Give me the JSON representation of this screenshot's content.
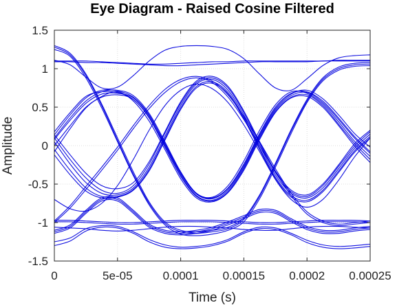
{
  "chart_data": {
    "type": "line",
    "title": "Eye Diagram - Raised Cosine Filtered",
    "xlabel": "Time (s)",
    "ylabel": "Amplitude",
    "xlim": [
      0,
      0.00025
    ],
    "ylim": [
      -1.5,
      1.5
    ],
    "xticks": [
      0,
      5e-05,
      0.0001,
      0.00015,
      0.0002,
      0.00025
    ],
    "xtick_labels": [
      "0",
      "5e-05",
      "0.0001",
      "0.00015",
      "0.0002",
      "0.00025"
    ],
    "yticks": [
      -1.5,
      -1,
      -0.5,
      0,
      0.5,
      1,
      1.5
    ],
    "ytick_labels": [
      "-1.5",
      "-1",
      "-0.5",
      "0",
      "0.5",
      "1",
      "1.5"
    ],
    "grid": true,
    "line_color": "#0000dd",
    "x": [
      0,
      1.25e-05,
      2.5e-05,
      3.75e-05,
      5e-05,
      6.25e-05,
      7.5e-05,
      8.75e-05,
      0.0001,
      0.0001125,
      0.000125,
      0.0001375,
      0.00015,
      0.0001625,
      0.000175,
      0.0001875,
      0.0002,
      0.0002125,
      0.000225,
      0.0002375,
      0.00025
    ],
    "series": [
      {
        "values": [
          1.3,
          1.2,
          0.93,
          0.54,
          0.1,
          -0.34,
          -0.73,
          -0.99,
          -1.1,
          -1.12,
          -1.1,
          -1.06,
          -0.94,
          -0.64,
          -0.23,
          0.21,
          0.6,
          0.88,
          1.02,
          1.07,
          1.08
        ]
      },
      {
        "values": [
          1.28,
          1.18,
          0.91,
          0.52,
          0.07,
          -0.37,
          -0.75,
          -1.01,
          -1.12,
          -1.14,
          -1.12,
          -1.08,
          -0.96,
          -0.66,
          -0.25,
          0.19,
          0.58,
          0.86,
          1.0,
          1.05,
          1.06
        ]
      },
      {
        "values": [
          1.25,
          1.16,
          0.88,
          0.49,
          0.05,
          -0.39,
          -0.77,
          -1.03,
          -1.15,
          -1.17,
          -1.15,
          -1.1,
          -0.99,
          -0.69,
          -0.28,
          0.16,
          0.56,
          0.84,
          0.98,
          1.03,
          1.04
        ]
      },
      {
        "values": [
          1.1,
          1.1,
          1.1,
          1.09,
          1.08,
          1.07,
          1.06,
          1.06,
          1.07,
          1.08,
          1.09,
          1.09,
          1.1,
          1.1,
          1.1,
          1.1,
          1.1,
          1.1,
          1.11,
          1.11,
          1.11
        ]
      },
      {
        "values": [
          1.09,
          1.09,
          1.08,
          1.08,
          1.07,
          1.06,
          1.05,
          1.04,
          1.04,
          1.05,
          1.06,
          1.07,
          1.08,
          1.09,
          1.09,
          1.09,
          1.09,
          1.1,
          1.1,
          1.1,
          1.1
        ]
      },
      {
        "values": [
          1.11,
          1.05,
          0.89,
          0.75,
          0.76,
          0.91,
          1.1,
          1.24,
          1.29,
          1.3,
          1.29,
          1.25,
          1.13,
          0.93,
          0.75,
          0.72,
          0.87,
          1.04,
          1.14,
          1.17,
          1.18
        ]
      },
      {
        "values": [
          0.1,
          0.36,
          0.58,
          0.7,
          0.72,
          0.65,
          0.42,
          0.05,
          -0.34,
          -0.62,
          -0.68,
          -0.55,
          -0.24,
          0.16,
          0.5,
          0.68,
          0.7,
          0.58,
          0.36,
          0.12,
          -0.08
        ]
      },
      {
        "values": [
          0.14,
          0.4,
          0.62,
          0.72,
          0.71,
          0.63,
          0.4,
          0.02,
          -0.36,
          -0.63,
          -0.69,
          -0.56,
          -0.26,
          0.14,
          0.48,
          0.67,
          0.72,
          0.61,
          0.4,
          0.16,
          -0.02
        ]
      },
      {
        "values": [
          0.18,
          0.43,
          0.64,
          0.7,
          0.69,
          0.6,
          0.37,
          0.0,
          -0.38,
          -0.65,
          -0.71,
          -0.58,
          -0.28,
          0.12,
          0.46,
          0.65,
          0.69,
          0.56,
          0.34,
          0.1,
          -0.1
        ]
      },
      {
        "values": [
          0.08,
          0.33,
          0.55,
          0.67,
          0.68,
          0.62,
          0.39,
          0.03,
          -0.35,
          -0.62,
          -0.67,
          -0.52,
          -0.2,
          0.2,
          0.53,
          0.7,
          0.68,
          0.54,
          0.31,
          0.06,
          -0.14
        ]
      },
      {
        "values": [
          0.0,
          0.26,
          0.5,
          0.63,
          0.66,
          0.6,
          0.36,
          -0.02,
          -0.4,
          -0.66,
          -0.72,
          -0.6,
          -0.3,
          0.1,
          0.44,
          0.63,
          0.66,
          0.52,
          0.28,
          0.03,
          -0.18
        ]
      },
      {
        "values": [
          -0.08,
          0.22,
          0.49,
          0.64,
          0.7,
          0.58,
          0.32,
          -0.05,
          -0.43,
          -0.68,
          -0.73,
          -0.61,
          -0.32,
          0.08,
          0.43,
          0.62,
          0.64,
          0.5,
          0.26,
          0.0,
          -0.22
        ]
      },
      {
        "values": [
          0.05,
          -0.24,
          -0.48,
          -0.62,
          -0.64,
          -0.55,
          -0.28,
          0.12,
          0.52,
          0.8,
          0.86,
          0.72,
          0.4,
          0.0,
          -0.38,
          -0.62,
          -0.68,
          -0.55,
          -0.3,
          -0.04,
          0.15
        ]
      },
      {
        "values": [
          0.1,
          -0.18,
          -0.42,
          -0.58,
          -0.62,
          -0.52,
          -0.24,
          0.16,
          0.55,
          0.82,
          0.88,
          0.75,
          0.43,
          0.03,
          -0.35,
          -0.6,
          -0.66,
          -0.52,
          -0.27,
          -0.01,
          0.18
        ]
      },
      {
        "values": [
          -0.05,
          -0.32,
          -0.55,
          -0.66,
          -0.66,
          -0.57,
          -0.31,
          0.09,
          0.49,
          0.77,
          0.83,
          0.69,
          0.37,
          -0.03,
          -0.41,
          -0.65,
          -0.71,
          -0.58,
          -0.33,
          -0.07,
          0.12
        ]
      },
      {
        "values": [
          0.14,
          -0.12,
          -0.36,
          -0.52,
          -0.56,
          -0.48,
          -0.21,
          0.18,
          0.57,
          0.84,
          0.9,
          0.77,
          0.45,
          0.05,
          -0.33,
          -0.58,
          -0.64,
          -0.5,
          -0.25,
          0.02,
          0.2
        ]
      },
      {
        "values": [
          -0.12,
          -0.38,
          -0.59,
          -0.68,
          -0.67,
          -0.58,
          -0.33,
          0.07,
          0.47,
          0.75,
          0.81,
          0.67,
          0.35,
          -0.05,
          -0.43,
          -0.67,
          -0.73,
          -0.6,
          -0.35,
          -0.09,
          0.1
        ]
      },
      {
        "values": [
          -0.7,
          -0.82,
          -0.85,
          -0.75,
          -0.52,
          -0.18,
          0.2,
          0.52,
          0.72,
          0.8,
          0.74,
          0.56,
          0.27,
          -0.08,
          -0.44,
          -0.7,
          -0.8,
          -0.7,
          -0.45,
          -0.15,
          0.1
        ]
      },
      {
        "values": [
          -1.1,
          -1.03,
          -0.84,
          -0.68,
          -0.68,
          -0.84,
          -1.02,
          -1.1,
          -1.12,
          -1.1,
          -1.06,
          -0.99,
          -0.91,
          -0.83,
          -0.84,
          -0.95,
          -1.05,
          -1.1,
          -1.1,
          -1.07,
          -1.05
        ]
      },
      {
        "values": [
          -1.12,
          -1.05,
          -0.86,
          -0.7,
          -0.7,
          -0.86,
          -1.04,
          -1.12,
          -1.14,
          -1.12,
          -1.08,
          -1.01,
          -0.93,
          -0.85,
          -0.86,
          -0.97,
          -1.07,
          -1.12,
          -1.12,
          -1.09,
          -1.07
        ]
      },
      {
        "values": [
          -1.14,
          -1.07,
          -0.88,
          -0.72,
          -0.72,
          -0.88,
          -1.06,
          -1.14,
          -1.16,
          -1.14,
          -1.1,
          -1.03,
          -0.95,
          -0.87,
          -0.88,
          -0.99,
          -1.09,
          -1.14,
          -1.14,
          -1.11,
          -1.09
        ]
      },
      {
        "values": [
          -0.97,
          -0.97,
          -0.98,
          -0.99,
          -1.0,
          -1.0,
          -0.99,
          -0.98,
          -0.97,
          -0.97,
          -0.97,
          -0.98,
          -0.99,
          -1.0,
          -1.0,
          -0.99,
          -0.98,
          -0.97,
          -0.97,
          -0.97,
          -0.98
        ]
      },
      {
        "values": [
          -0.99,
          -0.99,
          -1.0,
          -1.01,
          -1.02,
          -1.02,
          -1.01,
          -1.0,
          -0.99,
          -0.99,
          -0.99,
          -1.0,
          -1.01,
          -1.02,
          -1.02,
          -1.01,
          -1.0,
          -0.99,
          -0.99,
          -0.99,
          -1.0
        ]
      },
      {
        "values": [
          -1.06,
          -1.07,
          -1.08,
          -1.1,
          -1.11,
          -1.1,
          -1.08,
          -1.06,
          -1.05,
          -1.05,
          -1.06,
          -1.07,
          -1.09,
          -1.1,
          -1.1,
          -1.08,
          -1.06,
          -1.05,
          -1.05,
          -1.06,
          -1.07
        ]
      },
      {
        "values": [
          -1.25,
          -1.2,
          -1.08,
          -1.04,
          -1.05,
          -1.12,
          -1.22,
          -1.29,
          -1.32,
          -1.31,
          -1.28,
          -1.22,
          -1.12,
          -1.06,
          -1.07,
          -1.14,
          -1.23,
          -1.29,
          -1.31,
          -1.3,
          -1.28
        ]
      },
      {
        "values": [
          -1.3,
          -1.24,
          -1.11,
          -1.06,
          -1.07,
          -1.14,
          -1.25,
          -1.32,
          -1.34,
          -1.33,
          -1.3,
          -1.24,
          -1.14,
          -1.08,
          -1.09,
          -1.16,
          -1.26,
          -1.32,
          -1.34,
          -1.33,
          -1.31
        ]
      },
      {
        "values": [
          -0.98,
          -0.78,
          -0.53,
          -0.28,
          -0.02,
          0.26,
          0.52,
          0.73,
          0.86,
          0.9,
          0.84,
          0.66,
          0.38,
          0.05,
          -0.3,
          -0.62,
          -0.86,
          -0.98,
          -1.02,
          -1.0,
          -0.98
        ]
      },
      {
        "values": [
          -1.0,
          -0.81,
          -0.57,
          -0.32,
          -0.06,
          0.22,
          0.48,
          0.69,
          0.83,
          0.88,
          0.82,
          0.63,
          0.34,
          0.0,
          -0.34,
          -0.65,
          -0.89,
          -1.0,
          -1.04,
          -1.02,
          -1.0
        ]
      }
    ]
  }
}
